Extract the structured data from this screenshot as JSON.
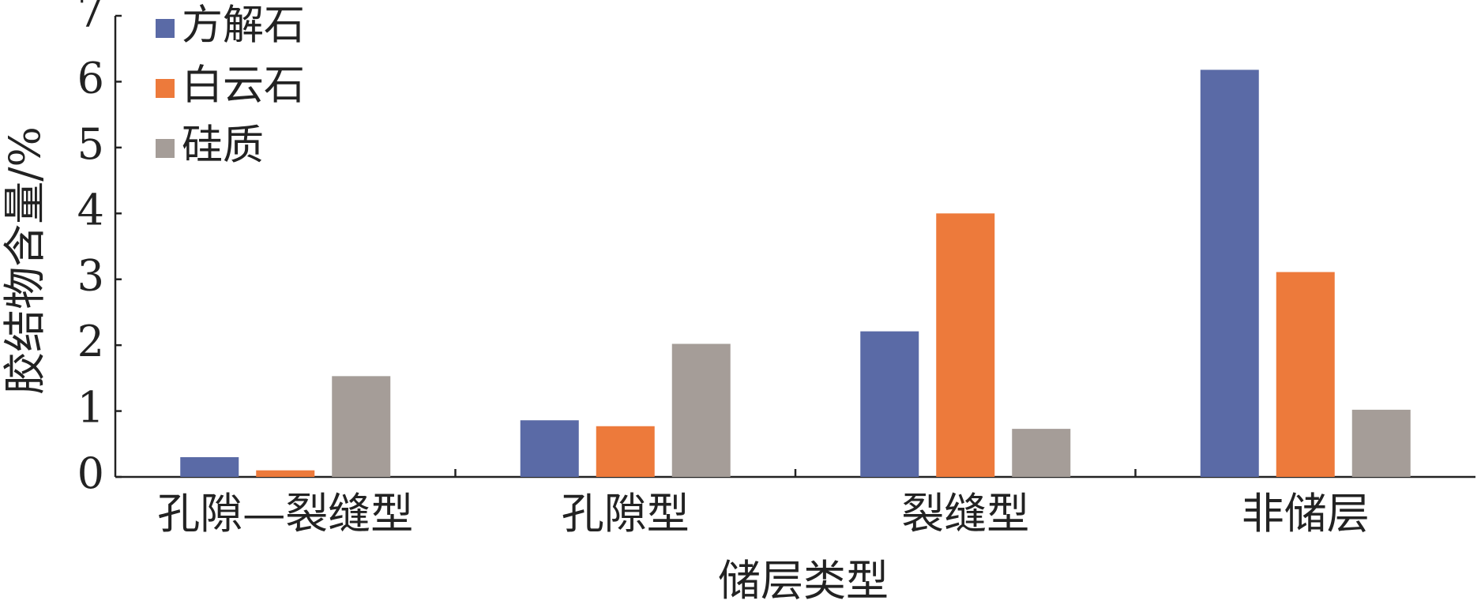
{
  "chart_data": {
    "type": "bar",
    "x_label": "储层类型",
    "y_label": "胶结物含量/%",
    "categories": [
      "孔隙—裂缝型",
      "孔隙型",
      "裂缝型",
      "非储层"
    ],
    "series": [
      {
        "name": "方解石",
        "color": "#5a6aa6",
        "values": [
          0.3,
          0.86,
          2.21,
          6.18
        ]
      },
      {
        "name": "白云石",
        "color": "#ed7a3b",
        "values": [
          0.1,
          0.77,
          4.0,
          3.11
        ]
      },
      {
        "name": "硅质",
        "color": "#a59d98",
        "values": [
          1.53,
          2.02,
          0.73,
          1.02
        ]
      }
    ],
    "ylim": [
      0,
      7
    ],
    "yticks": [
      0,
      1,
      2,
      3,
      4,
      5,
      6,
      7
    ],
    "legend": "upper left"
  }
}
